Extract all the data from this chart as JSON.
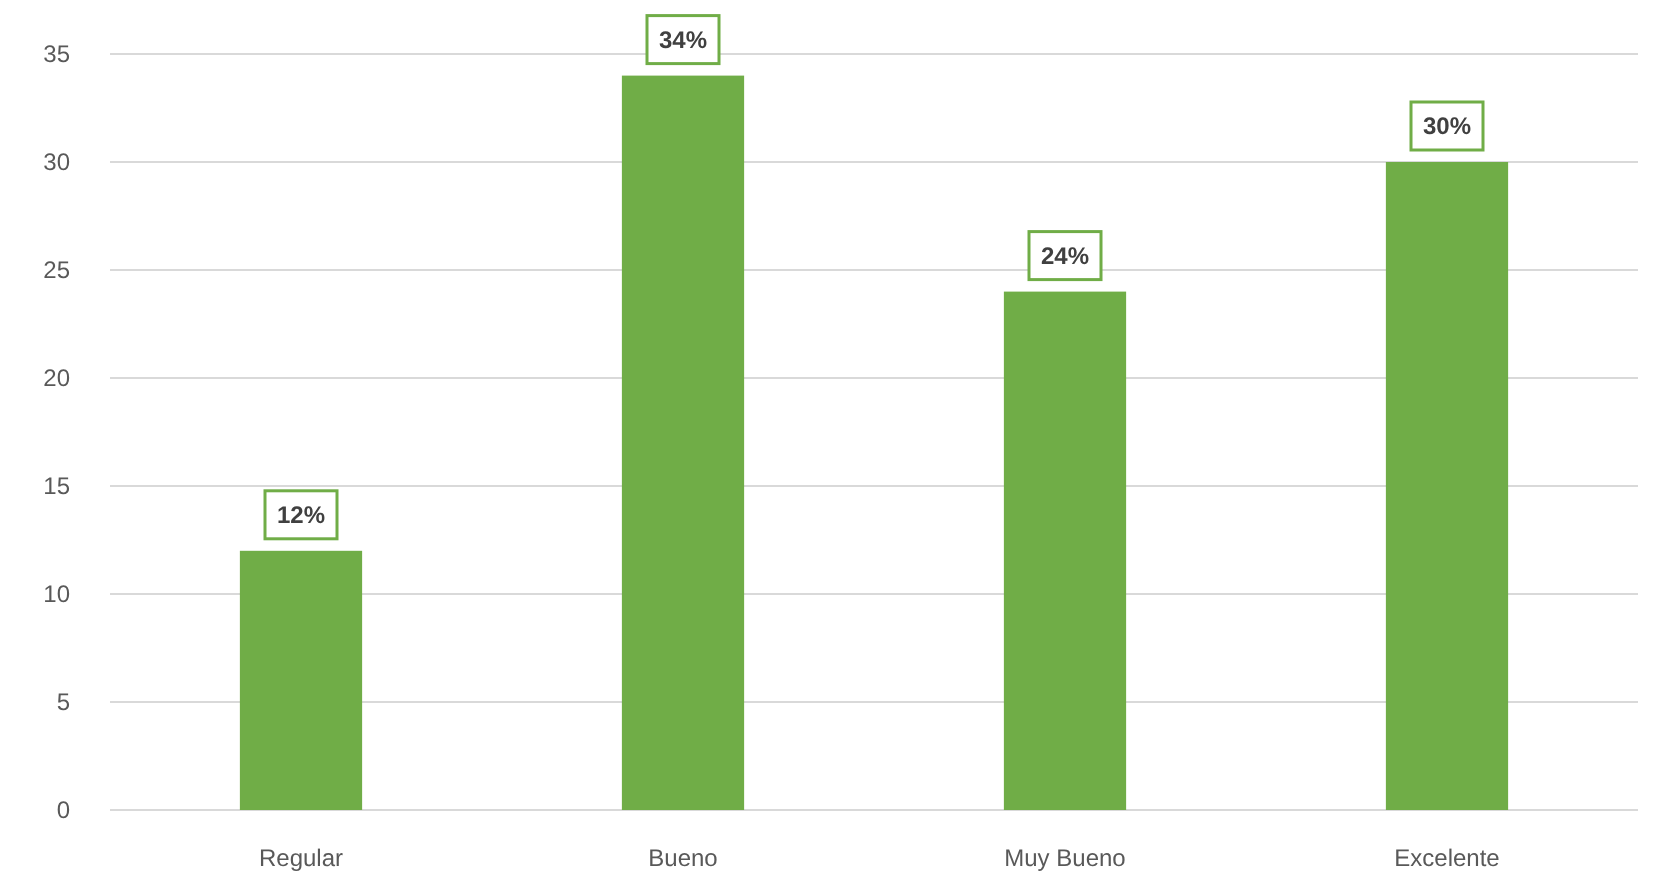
{
  "chart_data": {
    "type": "bar",
    "categories": [
      "Regular",
      "Bueno",
      "Muy Bueno",
      "Excelente"
    ],
    "values": [
      12,
      34,
      24,
      30
    ],
    "value_labels": [
      "12%",
      "34%",
      "24%",
      "30%"
    ],
    "color": "#70ad47",
    "ylim": [
      0,
      35
    ],
    "yticks": [
      0,
      5,
      10,
      15,
      20,
      25,
      30,
      35
    ],
    "grid": "y"
  }
}
